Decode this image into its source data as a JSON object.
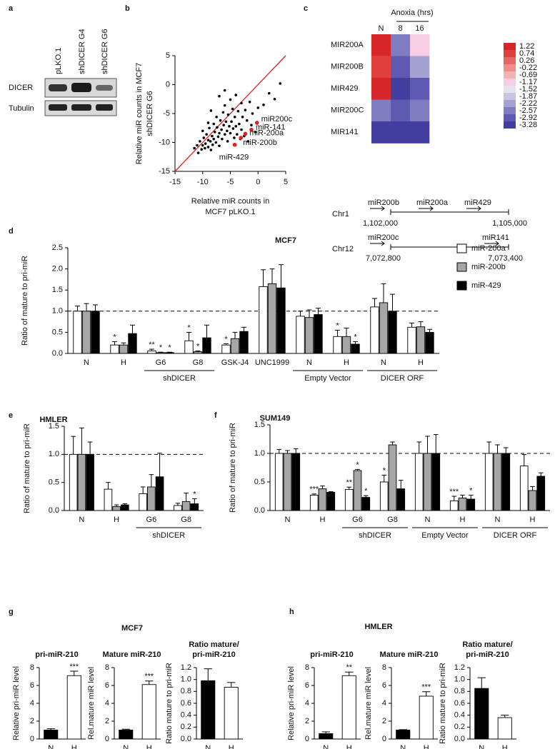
{
  "panels": [
    {
      "letter": "a"
    },
    {
      "letter": "b"
    },
    {
      "letter": "c"
    },
    {
      "letter": "d"
    },
    {
      "letter": "e"
    },
    {
      "letter": "f"
    },
    {
      "letter": "g",
      "title": "MCF7"
    },
    {
      "letter": "h",
      "title": "HMLER"
    }
  ],
  "blot": {
    "lanes": [
      "pLKO.1",
      "shDICER G4",
      "shDICER G6"
    ],
    "rows": [
      "DICER",
      "Tubulin"
    ]
  },
  "gene_map": [
    {
      "chromosome": "Chr1",
      "start": "1,102,000",
      "end": "1,105,000",
      "genes": [
        "miR200b",
        "miR200a",
        "miR429"
      ]
    },
    {
      "chromosome": "Chr12",
      "start": "7,072,800",
      "end": "7,073,400",
      "genes": [
        "miR200c",
        "miR141"
      ]
    }
  ],
  "chart_data": [
    {
      "type": "scatter",
      "xlabel": [
        "Relative miR counts in",
        "MCF7 pLKO.1"
      ],
      "ylabel": [
        "Relative miR counts in MCF7",
        "shDICER G6"
      ],
      "xlim": [
        -15,
        5
      ],
      "ylim": [
        -15,
        5
      ],
      "xticks": [
        -15,
        -10,
        -5,
        0,
        5
      ],
      "yticks": [
        -15,
        -10,
        -5,
        0,
        5
      ],
      "identity_line": true,
      "series": [
        {
          "color": "#000000",
          "x": [
            -11.5,
            -11,
            -10.8,
            -10.5,
            -10.2,
            -10,
            -9.8,
            -9.6,
            -9.5,
            -9.3,
            -9,
            -9,
            -8.8,
            -8.6,
            -8.5,
            -8.3,
            -8.2,
            -8,
            -8,
            -7.8,
            -7.6,
            -7.5,
            -7.4,
            -7.2,
            -7,
            -7,
            -6.8,
            -6.6,
            -6.5,
            -6.3,
            -6.2,
            -6,
            -6,
            -5.8,
            -5.6,
            -5.5,
            -5.4,
            -5.2,
            -5,
            -5,
            -4.8,
            -4.6,
            -4.5,
            -4.3,
            -4.2,
            -4,
            -4,
            -3.8,
            -3.6,
            -3.4,
            -3.2,
            -3,
            -3,
            -2.8,
            -2.5,
            -2.3,
            -2,
            -1.8,
            -1.5,
            -1.2,
            -1,
            -0.5,
            0,
            1,
            2,
            3,
            -7,
            -6,
            -8.5,
            -9,
            -10,
            4
          ],
          "y": [
            -11,
            -10.5,
            -11.8,
            -9.8,
            -11.2,
            -10.5,
            -9.2,
            -11,
            -10.2,
            -8.6,
            -10.8,
            -9.6,
            -7.5,
            -9.8,
            -11.3,
            -8.9,
            -10.4,
            -6.8,
            -9.4,
            -8.2,
            -10,
            -5.6,
            -7.4,
            -9,
            -8.4,
            -10.6,
            -6.2,
            -7.8,
            -9.4,
            -4.8,
            -7,
            -8.6,
            -3.6,
            -6.4,
            -8,
            -9.8,
            -5.2,
            -7.2,
            -2.6,
            -8.4,
            -6.4,
            -4.2,
            -7.6,
            -9.2,
            -5.6,
            -1.8,
            -7.2,
            -8.6,
            -4.6,
            -6.8,
            -9.4,
            -3.2,
            -7.8,
            -5.6,
            -8.9,
            -4.4,
            -6.2,
            -9.8,
            -3,
            -7,
            -5,
            -8.2,
            -4,
            -3.5,
            -1.5,
            -2.5,
            -2,
            -1,
            -4.5,
            -6.6,
            -8,
            0.2
          ]
        },
        {
          "color": "#e02020",
          "x": [
            -0.2,
            -1.2,
            -2.3,
            -3.1,
            -4.2
          ],
          "y": [
            -6.6,
            -7.8,
            -8.5,
            -9.2,
            -10.4
          ],
          "labels": [
            "miR200c",
            "miR-141",
            "miR-200a",
            "miR-200b",
            "miR-429"
          ]
        }
      ]
    },
    {
      "type": "heatmap",
      "title": "Anoxia (hrs)",
      "x": [
        "N",
        "8",
        "16"
      ],
      "y": [
        "MIR200A",
        "MIR200B",
        "MIR429",
        "MIR200C",
        "MIR141"
      ],
      "values": [
        [
          1.22,
          -2.57,
          -1.17
        ],
        [
          0.74,
          -2.92,
          -2.22
        ],
        [
          1.22,
          -3.28,
          -2.92
        ],
        [
          -2.57,
          -2.92,
          -2.57
        ],
        [
          -3.28,
          -3.28,
          -3.28
        ]
      ],
      "colorbar": {
        "values": [
          1.22,
          0.74,
          0.26,
          -0.22,
          -0.69,
          -1.17,
          -1.52,
          -1.87,
          -2.22,
          -2.57,
          -2.92,
          -3.28
        ],
        "colors": [
          "#d7252a",
          "#e0413f",
          "#e86565",
          "#ef8d8d",
          "#f4b3b3",
          "#f6cde2",
          "#e6e2f0",
          "#c8c4e2",
          "#a5a1d3",
          "#807cc2",
          "#5f5ab1",
          "#433da0"
        ]
      }
    },
    {
      "type": "bar",
      "title": "MCF7",
      "ylabel": "Ratio of mature to pri-miR",
      "ylim": [
        0,
        2.5
      ],
      "yticks": [
        {
          "value": 0,
          "label": "0.0"
        },
        0.5,
        {
          "value": 1,
          "label": "1.0"
        },
        1.5,
        {
          "value": 2,
          "label": "2.0"
        },
        2.5
      ],
      "reference_line": 1,
      "legend": "right",
      "categories": [
        "N",
        "H",
        "G6",
        "G8",
        "GSK-J4",
        "UNC1999",
        "N",
        "H",
        "N",
        "H"
      ],
      "groups": [
        {
          "label": "shDICER",
          "start": 2,
          "end": 3
        },
        {
          "label": "Empty Vector",
          "start": 6,
          "end": 7
        },
        {
          "label": "DICER ORF",
          "start": 8,
          "end": 9
        }
      ],
      "series": [
        {
          "name": "miR-200a",
          "color": "#ffffff",
          "values": [
            1,
            0.2,
            0.06,
            0.3,
            0.2,
            1.58,
            0.88,
            0.4,
            1.1,
            0.62
          ],
          "errors": [
            0.12,
            0.08,
            0.04,
            0.2,
            0.03,
            0.4,
            0.12,
            0.15,
            0.2,
            0.1
          ],
          "annotations": [
            null,
            "*",
            "**",
            "*",
            "*",
            null,
            null,
            "*",
            null,
            null
          ]
        },
        {
          "name": "miR-200b",
          "color": "#a6a6a6",
          "values": [
            1,
            0.2,
            0.02,
            0.04,
            0.35,
            1.65,
            0.85,
            0.4,
            1.2,
            0.63
          ],
          "errors": [
            0.18,
            0.05,
            0.01,
            0.02,
            0.15,
            0.35,
            0.18,
            0.2,
            0.45,
            0.12
          ],
          "annotations": [
            null,
            null,
            "*",
            "*",
            null,
            null,
            null,
            null,
            null,
            null
          ]
        },
        {
          "name": "miR-429",
          "color": "#000000",
          "values": [
            1,
            0.47,
            0.02,
            0.37,
            0.52,
            1.55,
            0.92,
            0.22,
            1,
            0.5
          ],
          "errors": [
            0.15,
            0.2,
            0.01,
            0.3,
            0.1,
            0.55,
            0.15,
            0.06,
            0.4,
            0.07
          ],
          "annotations": [
            null,
            null,
            "*",
            null,
            null,
            null,
            null,
            "*",
            null,
            null
          ]
        }
      ]
    },
    {
      "type": "bar",
      "title": "HMLER",
      "ylabel": "Ratio of mature to pri-miR",
      "ylim": [
        0,
        1.5
      ],
      "yticks": [
        {
          "value": 0,
          "label": "0.0"
        },
        0.5,
        {
          "value": 1,
          "label": "1.0"
        },
        1.5
      ],
      "reference_line": 1,
      "categories": [
        "N",
        "H",
        "G6",
        "G8"
      ],
      "groups": [
        {
          "label": "shDICER",
          "start": 2,
          "end": 3
        }
      ],
      "series": [
        {
          "name": "miR-200a",
          "color": "#ffffff",
          "values": [
            1,
            0.38,
            0.3,
            0.09
          ],
          "errors": [
            0.32,
            0.12,
            0.12,
            0.04
          ],
          "annotations": [
            null,
            null,
            null,
            null
          ]
        },
        {
          "name": "miR-200b",
          "color": "#a6a6a6",
          "values": [
            1,
            0.07,
            0.42,
            0.16
          ],
          "errors": [
            0.47,
            0.03,
            0.22,
            0.15
          ],
          "annotations": [
            null,
            null,
            null,
            null
          ]
        },
        {
          "name": "miR-429",
          "color": "#000000",
          "values": [
            1,
            0.1,
            0.6,
            0.12
          ],
          "errors": [
            0.22,
            0.02,
            0.42,
            0.09
          ],
          "annotations": [
            null,
            null,
            null,
            "*"
          ]
        }
      ]
    },
    {
      "type": "bar",
      "title": "SUM149",
      "ylabel": "Ratio of mature to pri-miR",
      "ylim": [
        0,
        1.5
      ],
      "yticks": [
        {
          "value": 0,
          "label": "0.0"
        },
        0.5,
        {
          "value": 1,
          "label": "1.0"
        },
        1.5
      ],
      "reference_line": 1,
      "categories": [
        "N",
        "H",
        "G6",
        "G8",
        "N",
        "H",
        "N",
        "H"
      ],
      "groups": [
        {
          "label": "shDICER",
          "start": 2,
          "end": 3
        },
        {
          "label": "Empty Vector",
          "start": 4,
          "end": 5
        },
        {
          "label": "DICER ORF",
          "start": 6,
          "end": 7
        }
      ],
      "series": [
        {
          "name": "miR-200a",
          "color": "#ffffff",
          "values": [
            1,
            0.27,
            0.37,
            0.5,
            1,
            0.17,
            1,
            0.78
          ],
          "errors": [
            0.07,
            0.02,
            0.04,
            0.12,
            0.2,
            0.08,
            0.2,
            0.2
          ],
          "annotations": [
            null,
            "***",
            "**",
            "*",
            null,
            "***",
            null,
            null
          ]
        },
        {
          "name": "miR-200b",
          "color": "#a6a6a6",
          "values": [
            1,
            0.38,
            0.7,
            1.15,
            1,
            0.22,
            1,
            0.35
          ],
          "errors": [
            0.05,
            0.05,
            0.02,
            0.05,
            0.3,
            0.05,
            0.15,
            0.07
          ],
          "annotations": [
            null,
            null,
            "*",
            null,
            null,
            null,
            null,
            null
          ]
        },
        {
          "name": "miR-429",
          "color": "#000000",
          "values": [
            1,
            0.32,
            0.23,
            0.38,
            1,
            0.2,
            1,
            0.6
          ],
          "errors": [
            0.08,
            0.01,
            0.03,
            0.15,
            0.33,
            0.07,
            0.1,
            0.06
          ],
          "annotations": [
            null,
            null,
            "*",
            null,
            null,
            "*",
            null,
            null
          ]
        }
      ]
    },
    {
      "type": "bar",
      "title": [
        "pri-miR-210"
      ],
      "ylabel": "Relative pri-miR level",
      "ylim": [
        0,
        8
      ],
      "yticks": [
        0,
        2,
        4,
        6,
        8
      ],
      "categories": [
        "N",
        "H"
      ],
      "series": [
        {
          "colors": [
            "#000000",
            "#ffffff"
          ],
          "values": [
            1,
            7.1
          ],
          "errors": [
            0.15,
            0.5
          ],
          "annotations": [
            null,
            "***"
          ]
        }
      ]
    },
    {
      "type": "bar",
      "title": [
        "Mature miR-210"
      ],
      "ylabel": "Rel.mature miR level",
      "ylim": [
        0,
        8
      ],
      "yticks": [
        0,
        2,
        4,
        6,
        8
      ],
      "categories": [
        "N",
        "H"
      ],
      "series": [
        {
          "colors": [
            "#000000",
            "#ffffff"
          ],
          "values": [
            1,
            6.1
          ],
          "errors": [
            0.1,
            0.4
          ],
          "annotations": [
            null,
            "***"
          ]
        }
      ]
    },
    {
      "type": "bar",
      "title": [
        "Ratio mature/",
        "pri-miR-210"
      ],
      "ylabel": "Ratio mature to pri-miR",
      "ylim": [
        0,
        1.2
      ],
      "yticks": [
        {
          "value": 0,
          "label": "0.0"
        },
        0.2,
        0.4,
        0.6,
        0.8,
        {
          "value": 1,
          "label": "1.0"
        },
        1.2
      ],
      "categories": [
        "N",
        "H"
      ],
      "series": [
        {
          "colors": [
            "#000000",
            "#ffffff"
          ],
          "values": [
            0.98,
            0.87
          ],
          "errors": [
            0.2,
            0.08
          ],
          "annotations": [
            null,
            null
          ]
        }
      ]
    },
    {
      "type": "bar",
      "title": [
        "pri-miR-210"
      ],
      "ylabel": "Relative pri-miR level",
      "ylim": [
        0,
        8
      ],
      "yticks": [
        0,
        2,
        4,
        6,
        8
      ],
      "categories": [
        "N",
        "H"
      ],
      "series": [
        {
          "colors": [
            "#000000",
            "#ffffff"
          ],
          "values": [
            0.6,
            7.1
          ],
          "errors": [
            0.2,
            0.4
          ],
          "annotations": [
            null,
            "**"
          ]
        }
      ]
    },
    {
      "type": "bar",
      "title": [
        "Mature miR-210"
      ],
      "ylabel": "Rel.mature miR level",
      "ylim": [
        0,
        8
      ],
      "yticks": [
        0,
        2,
        4,
        6,
        8
      ],
      "categories": [
        "N",
        "H"
      ],
      "series": [
        {
          "colors": [
            "#000000",
            "#ffffff"
          ],
          "values": [
            1,
            4.8
          ],
          "errors": [
            0.05,
            0.5
          ],
          "annotations": [
            null,
            "***"
          ]
        }
      ]
    },
    {
      "type": "bar",
      "title": [
        "Ratio mature/",
        "pri-miR-210"
      ],
      "ylabel": "Ratio mature to pri-miR",
      "ylim": [
        0,
        1.2
      ],
      "yticks": [
        {
          "value": 0,
          "label": "0.0"
        },
        0.2,
        0.4,
        0.6,
        0.8,
        {
          "value": 1,
          "label": "1.0"
        },
        1.2
      ],
      "categories": [
        "N",
        "H"
      ],
      "series": [
        {
          "colors": [
            "#000000",
            "#ffffff"
          ],
          "values": [
            0.85,
            0.36
          ],
          "errors": [
            0.18,
            0.04
          ],
          "annotations": [
            null,
            null
          ]
        }
      ]
    }
  ]
}
